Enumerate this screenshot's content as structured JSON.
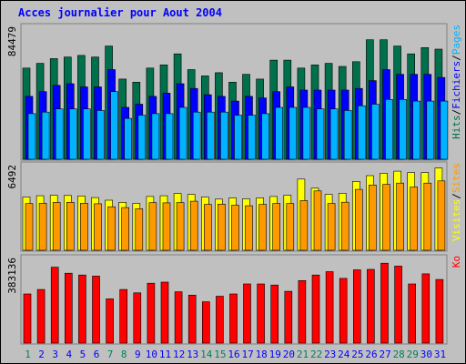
{
  "chart_data": {
    "title": "Acces journalier pour Aout 2004",
    "x": [
      "1",
      "2",
      "3",
      "4",
      "5",
      "6",
      "7",
      "8",
      "9",
      "10",
      "11",
      "12",
      "13",
      "14",
      "15",
      "16",
      "17",
      "18",
      "19",
      "20",
      "21",
      "22",
      "23",
      "24",
      "25",
      "26",
      "27",
      "28",
      "29",
      "30",
      "31"
    ],
    "weekend_days": [
      "1",
      "7",
      "8",
      "14",
      "15",
      "21",
      "22",
      "28",
      "29"
    ],
    "panels": [
      {
        "id": "hits-files-pages",
        "type": "bar",
        "ymax_label": "84479",
        "ymax": 84479,
        "series": [
          {
            "name": "Hits",
            "color": "#006f4b",
            "values": [
              58000,
              61000,
              64000,
              65000,
              66000,
              65000,
              72000,
              51000,
              49000,
              58000,
              60000,
              67000,
              57000,
              53000,
              55000,
              49000,
              54000,
              51000,
              63000,
              63000,
              58000,
              60000,
              61000,
              59000,
              62000,
              76000,
              76000,
              72000,
              67000,
              71000,
              70000
            ]
          },
          {
            "name": "Fichiers",
            "color": "#0000ff",
            "values": [
              40000,
              43000,
              47000,
              48000,
              46000,
              46000,
              57000,
              33000,
              35000,
              40000,
              42000,
              48000,
              45000,
              41000,
              40000,
              37000,
              40000,
              39000,
              43000,
              46000,
              44000,
              44000,
              44000,
              44000,
              45000,
              50000,
              57000,
              54000,
              54000,
              54000,
              52000
            ]
          },
          {
            "name": "Pages",
            "color": "#00b2ff",
            "values": [
              29000,
              30000,
              32000,
              32000,
              32000,
              31000,
              43000,
              26000,
              28000,
              29000,
              29000,
              33000,
              30000,
              30000,
              30000,
              28000,
              28000,
              29000,
              33000,
              33000,
              33000,
              32000,
              32000,
              31000,
              34000,
              35000,
              38000,
              38000,
              37000,
              37000,
              37000
            ]
          }
        ],
        "legend": [
          "Pages",
          "/",
          "Fichiers",
          "/",
          "Hits"
        ]
      },
      {
        "id": "visits-sites",
        "type": "bar",
        "ymax_label": "6492",
        "ymax": 6492,
        "series": [
          {
            "name": "Visites",
            "color": "#ffff00",
            "values": [
              4040,
              4140,
              4170,
              4160,
              4120,
              4000,
              3800,
              3640,
              3560,
              4080,
              4140,
              4300,
              4240,
              4040,
              3880,
              3980,
              3900,
              3980,
              4080,
              4180,
              5400,
              4710,
              4240,
              4320,
              5220,
              5660,
              5840,
              6000,
              5900,
              5900,
              6240
            ]
          },
          {
            "name": "Sites",
            "color": "#ff9900",
            "values": [
              3540,
              3570,
              3630,
              3640,
              3570,
              3530,
              3300,
              3240,
              3150,
              3610,
              3600,
              3620,
              3720,
              3480,
              3500,
              3420,
              3380,
              3480,
              3550,
              3550,
              3770,
              4500,
              3550,
              3650,
              4620,
              4950,
              5000,
              5100,
              4800,
              5100,
              5260
            ]
          }
        ],
        "legend": [
          "Sites",
          "/",
          "Visites"
        ]
      },
      {
        "id": "ko",
        "type": "bar",
        "ymax_label": "383136",
        "ymax": 383136,
        "series": [
          {
            "name": "Ko",
            "color": "#ff0000",
            "values": [
              220000,
              240000,
              340000,
              313000,
              305000,
              300000,
              198000,
              240000,
              225000,
              268000,
              273000,
              230000,
              215000,
              185000,
              210000,
              220000,
              265000,
              265000,
              260000,
              232000,
              280000,
              305000,
              320000,
              290000,
              328000,
              330000,
              358000,
              345000,
              265000,
              310000,
              285000
            ]
          }
        ],
        "legend": [
          "Ko"
        ]
      }
    ]
  },
  "colors": {
    "background": "#c0c0c0",
    "title": "#0000ff",
    "weekday_label": "#0000ff",
    "weekend_label": "#00805c",
    "frame": "#808080"
  }
}
